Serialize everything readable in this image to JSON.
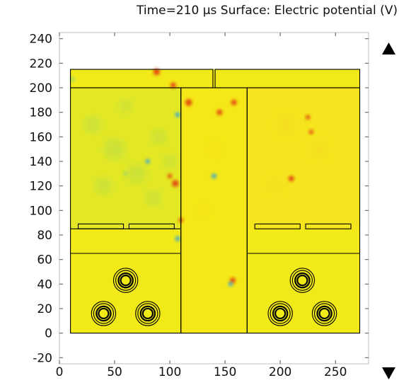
{
  "title": "Time=210 µs   Surface: Electric potential (V)",
  "chart_data": {
    "type": "heatmap",
    "title": "Time=210 µs   Surface: Electric potential (V)",
    "xlim": [
      0,
      280
    ],
    "ylim": [
      -25,
      245
    ],
    "x_ticks": [
      0,
      50,
      100,
      150,
      200,
      250
    ],
    "y_ticks": [
      -20,
      0,
      20,
      40,
      60,
      80,
      100,
      120,
      140,
      160,
      180,
      200,
      220,
      240
    ],
    "grid": false,
    "colors": {
      "field": "#f2ea18",
      "field_left": "#d8e630",
      "field_right": "#f5e420",
      "boundary": "#000000",
      "high": "#e03010",
      "low": "#2aa0e0",
      "mid": "#9ed860",
      "scale_arrows": "#000000"
    },
    "legend_controls": [
      "scale-up-arrow",
      "scale-down-arrow"
    ]
  }
}
